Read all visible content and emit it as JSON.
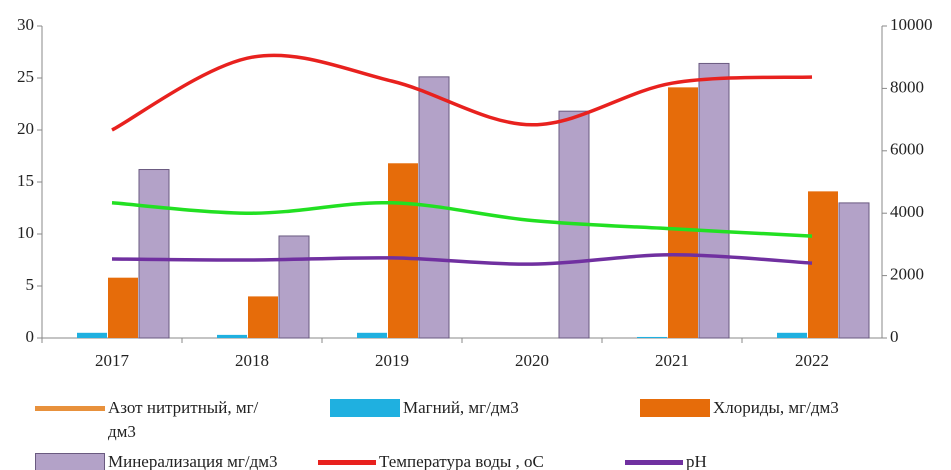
{
  "chart_data": {
    "type": "combo",
    "categories": [
      "2017",
      "2018",
      "2019",
      "2020",
      "2021",
      "2022"
    ],
    "ylim": [
      0,
      30
    ],
    "yticks": [
      0,
      5,
      10,
      15,
      20,
      25,
      30
    ],
    "y2lim": [
      0,
      10000
    ],
    "y2ticks": [
      0,
      2000,
      4000,
      6000,
      8000,
      10000
    ],
    "series": [
      {
        "name": "Азот нитритный, мг/дм3",
        "kind": "bar",
        "color": "#e8913c",
        "values": [
          0,
          0,
          0,
          0,
          0,
          0
        ]
      },
      {
        "name": "Магний, мг/дм3",
        "kind": "bar",
        "color": "#1fb0e0",
        "values": [
          0.5,
          0.3,
          0.5,
          0,
          0.1,
          0.5
        ]
      },
      {
        "name": "Хлориды, мг/дм3",
        "kind": "bar",
        "color": "#e66c0a",
        "values": [
          5.8,
          4.0,
          16.8,
          0,
          24.1,
          14.1
        ]
      },
      {
        "name": "Минерализация мг/дм3",
        "kind": "bar",
        "color": "#b3a2c8",
        "axis": "y2",
        "values": [
          5400,
          3270,
          8370,
          7270,
          8800,
          4330
        ]
      },
      {
        "name": "Температура воды , оС",
        "kind": "line",
        "color": "#e8211e",
        "values": [
          20.0,
          27.0,
          24.7,
          20.5,
          24.5,
          25.1
        ]
      },
      {
        "name": "pH",
        "kind": "line",
        "color": "#7030a0",
        "values": [
          7.6,
          7.5,
          7.7,
          7.1,
          8.0,
          7.2
        ]
      },
      {
        "kind": "line",
        "color": "#22e022",
        "values": [
          13.0,
          12.0,
          13.0,
          11.3,
          10.5,
          9.8
        ]
      }
    ]
  }
}
